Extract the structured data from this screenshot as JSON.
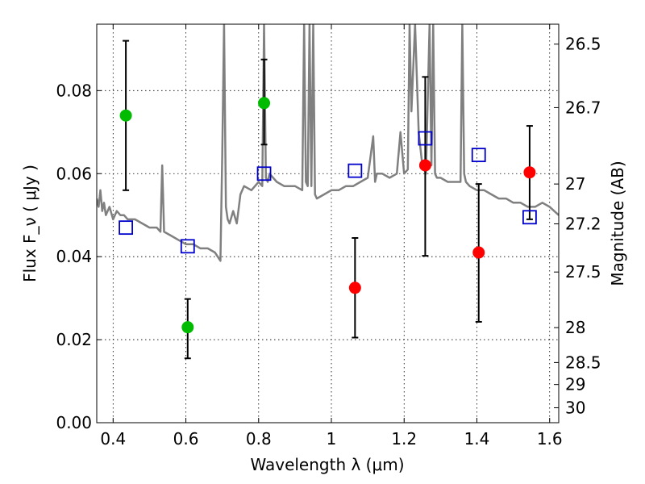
{
  "chart_data": {
    "type": "scatter",
    "xlabel": "Wavelength λ (μm)",
    "ylabel": "Flux F_ν ( μJy )",
    "ylabel_right": "Magnitude (AB)",
    "xlim": [
      0.355,
      1.625
    ],
    "ylim": [
      0.0,
      0.096
    ],
    "grid": true,
    "x_ticks": [
      0.4,
      0.6,
      0.8,
      1.0,
      1.2,
      1.4,
      1.6
    ],
    "x_tick_labels": [
      "0.4",
      "0.6",
      "0.8",
      "1",
      "1.2",
      "1.4",
      "1.6"
    ],
    "y_ticks": [
      0.0,
      0.02,
      0.04,
      0.06,
      0.08
    ],
    "y_tick_labels": [
      "0.00",
      "0.02",
      "0.04",
      "0.06",
      "0.08"
    ],
    "mag_ticks": [
      {
        "label": "26.5",
        "flux": 0.0912
      },
      {
        "label": "26.7",
        "flux": 0.0759
      },
      {
        "label": "27",
        "flux": 0.0575
      },
      {
        "label": "27.2",
        "flux": 0.0479
      },
      {
        "label": "27.5",
        "flux": 0.0363
      },
      {
        "label": "28",
        "flux": 0.0229
      },
      {
        "label": "28.5",
        "flux": 0.0145
      },
      {
        "label": "29",
        "flux": 0.0092
      },
      {
        "label": "30",
        "flux": 0.0036
      }
    ],
    "model_spectrum": {
      "color": "#808080",
      "x": [
        0.355,
        0.36,
        0.365,
        0.37,
        0.375,
        0.38,
        0.39,
        0.4,
        0.41,
        0.42,
        0.43,
        0.44,
        0.45,
        0.46,
        0.48,
        0.5,
        0.52,
        0.53,
        0.535,
        0.54,
        0.56,
        0.58,
        0.6,
        0.62,
        0.64,
        0.66,
        0.68,
        0.695,
        0.7,
        0.705,
        0.71,
        0.715,
        0.72,
        0.73,
        0.74,
        0.75,
        0.76,
        0.78,
        0.8,
        0.81,
        0.815,
        0.82,
        0.825,
        0.83,
        0.85,
        0.87,
        0.9,
        0.92,
        0.925,
        0.93,
        0.935,
        0.94,
        0.945,
        0.95,
        0.955,
        0.96,
        0.98,
        1.0,
        1.02,
        1.04,
        1.06,
        1.08,
        1.1,
        1.115,
        1.12,
        1.125,
        1.14,
        1.16,
        1.18,
        1.19,
        1.2,
        1.21,
        1.215,
        1.22,
        1.23,
        1.24,
        1.25,
        1.26,
        1.27,
        1.275,
        1.28,
        1.285,
        1.29,
        1.3,
        1.32,
        1.34,
        1.355,
        1.36,
        1.365,
        1.37,
        1.38,
        1.4,
        1.42,
        1.44,
        1.46,
        1.48,
        1.5,
        1.52,
        1.54,
        1.56,
        1.58,
        1.6,
        1.625
      ],
      "y": [
        0.054,
        0.052,
        0.056,
        0.051,
        0.053,
        0.05,
        0.052,
        0.049,
        0.051,
        0.05,
        0.05,
        0.049,
        0.049,
        0.049,
        0.048,
        0.047,
        0.047,
        0.046,
        0.062,
        0.046,
        0.045,
        0.044,
        0.043,
        0.043,
        0.042,
        0.042,
        0.041,
        0.039,
        0.065,
        0.096,
        0.052,
        0.049,
        0.048,
        0.051,
        0.048,
        0.055,
        0.057,
        0.056,
        0.058,
        0.057,
        0.096,
        0.059,
        0.058,
        0.06,
        0.058,
        0.057,
        0.057,
        0.056,
        0.096,
        0.058,
        0.057,
        0.096,
        0.057,
        0.096,
        0.055,
        0.054,
        0.055,
        0.056,
        0.056,
        0.057,
        0.057,
        0.058,
        0.059,
        0.069,
        0.058,
        0.06,
        0.06,
        0.059,
        0.06,
        0.07,
        0.06,
        0.061,
        0.096,
        0.075,
        0.096,
        0.07,
        0.062,
        0.06,
        0.096,
        0.062,
        0.096,
        0.06,
        0.059,
        0.059,
        0.058,
        0.058,
        0.058,
        0.096,
        0.06,
        0.058,
        0.057,
        0.056,
        0.056,
        0.055,
        0.054,
        0.054,
        0.053,
        0.053,
        0.052,
        0.052,
        0.053,
        0.052,
        0.05
      ]
    },
    "model_points": {
      "color": "#0000cc",
      "marker": "open-square",
      "x": [
        0.435,
        0.605,
        0.815,
        1.065,
        1.258,
        1.405,
        1.545
      ],
      "y": [
        0.047,
        0.0425,
        0.06,
        0.0607,
        0.0685,
        0.0645,
        0.0495
      ]
    },
    "detections_green": {
      "color": "#00bb00",
      "marker": "filled-circle",
      "x": [
        0.435,
        0.605,
        0.815
      ],
      "y": [
        0.074,
        0.023,
        0.077
      ],
      "err_low": [
        0.056,
        0.0155,
        0.067
      ],
      "err_high": [
        0.092,
        0.0298,
        0.0875
      ]
    },
    "detections_red": {
      "color": "#ff0000",
      "marker": "filled-circle",
      "x": [
        1.065,
        1.258,
        1.405,
        1.545
      ],
      "y": [
        0.0325,
        0.062,
        0.041,
        0.0603
      ],
      "err_low": [
        0.0205,
        0.0402,
        0.0243,
        0.049
      ],
      "err_high": [
        0.0445,
        0.0833,
        0.0575,
        0.0715
      ]
    }
  }
}
